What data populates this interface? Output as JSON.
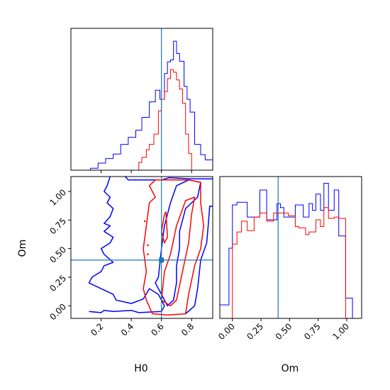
{
  "chart_data": {
    "type": "corner",
    "colors": {
      "blue": "#0000ff",
      "red": "#ff0000",
      "truth": "#1f77b4"
    },
    "truths": {
      "H0": 0.6,
      "Om": 0.4
    },
    "x_axis_label": "H0",
    "y_axis_label": "Om",
    "om_x_axis_label": "Om",
    "h0_ticks": [
      "0.2",
      "0.4",
      "0.6",
      "0.8"
    ],
    "om_ticks": [
      "0.00",
      "0.25",
      "0.50",
      "0.75",
      "1.00"
    ],
    "h0_range": [
      0.0,
      0.94
    ],
    "om_range": [
      -0.11,
      1.13
    ],
    "h0_hist_ymax": 11.0,
    "om_hist_ymax": 10.5,
    "h0_hist": {
      "blue": {
        "edges": [
          0.0,
          0.13,
          0.18,
          0.23,
          0.28,
          0.33,
          0.38,
          0.43,
          0.47,
          0.52,
          0.56,
          0.59,
          0.62,
          0.64,
          0.66,
          0.68,
          0.7,
          0.72,
          0.75,
          0.77,
          0.79,
          0.82,
          0.86,
          0.89,
          0.94
        ],
        "counts": [
          0.0,
          0.15,
          0.55,
          0.9,
          1.25,
          2.0,
          2.55,
          3.1,
          4.1,
          5.3,
          6.2,
          5.5,
          7.5,
          8.4,
          8.55,
          10.0,
          9.05,
          8.45,
          6.5,
          5.5,
          4.5,
          2.0,
          1.2,
          0.8
        ]
      },
      "red": {
        "edges": [
          0.45,
          0.47,
          0.5,
          0.52,
          0.55,
          0.58,
          0.6,
          0.62,
          0.64,
          0.66,
          0.68,
          0.7,
          0.72,
          0.74,
          0.76,
          0.78,
          0.8,
          0.82
        ],
        "counts": [
          0.6,
          1.0,
          1.6,
          2.0,
          2.8,
          4.6,
          5.5,
          6.1,
          7.1,
          7.8,
          7.6,
          7.0,
          6.3,
          5.2,
          2.8,
          1.3,
          0.0
        ]
      }
    },
    "om_hist": {
      "blue": {
        "edges": [
          -0.11,
          -0.03,
          0.0,
          0.04,
          0.08,
          0.13,
          0.24,
          0.3,
          0.39,
          0.42,
          0.45,
          0.49,
          0.55,
          0.62,
          0.67,
          0.7,
          0.73,
          0.77,
          0.8,
          0.84,
          0.89,
          0.93,
          0.99,
          1.05,
          1.13
        ],
        "counts": [
          1.0,
          5.2,
          8.4,
          8.6,
          8.6,
          7.5,
          9.5,
          7.3,
          8.5,
          8.2,
          7.5,
          7.5,
          8.4,
          7.5,
          8.5,
          8.0,
          9.2,
          8.0,
          10.0,
          8.0,
          9.5,
          6.1,
          1.5,
          0.0
        ]
      },
      "red": {
        "edges": [
          0.0,
          0.04,
          0.08,
          0.13,
          0.19,
          0.24,
          0.3,
          0.36,
          0.39,
          0.45,
          0.49,
          0.55,
          0.58,
          0.64,
          0.67,
          0.73,
          0.77,
          0.8,
          0.84,
          0.89,
          0.93,
          0.99
        ],
        "counts": [
          5.5,
          6.4,
          7.2,
          6.5,
          7.5,
          7.8,
          7.2,
          7.8,
          7.8,
          7.8,
          7.6,
          6.8,
          6.7,
          6.2,
          6.4,
          7.3,
          6.8,
          8.2,
          7.4,
          7.5,
          7.4
        ]
      }
    },
    "contours": {
      "blue": [
        [
          [
            0.12,
            -0.05
          ],
          [
            0.2,
            -0.06
          ],
          [
            0.22,
            -0.04
          ],
          [
            0.28,
            -0.05
          ],
          [
            0.4,
            -0.04
          ],
          [
            0.45,
            -0.06
          ],
          [
            0.6,
            -0.05
          ],
          [
            0.62,
            0.0
          ],
          [
            0.58,
            0.1
          ],
          [
            0.52,
            0.15
          ],
          [
            0.48,
            0.06
          ],
          [
            0.4,
            0.02
          ],
          [
            0.3,
            0.05
          ],
          [
            0.28,
            0.1
          ],
          [
            0.2,
            0.15
          ],
          [
            0.12,
            0.2
          ],
          [
            0.14,
            0.25
          ],
          [
            0.2,
            0.3
          ],
          [
            0.22,
            0.35
          ],
          [
            0.28,
            0.38
          ],
          [
            0.22,
            0.45
          ],
          [
            0.2,
            0.5
          ],
          [
            0.26,
            0.55
          ],
          [
            0.28,
            0.6
          ],
          [
            0.22,
            0.65
          ],
          [
            0.26,
            0.7
          ],
          [
            0.22,
            0.72
          ],
          [
            0.26,
            0.78
          ],
          [
            0.28,
            0.85
          ],
          [
            0.24,
            0.9
          ],
          [
            0.26,
            0.95
          ],
          [
            0.22,
            1.0
          ],
          [
            0.24,
            1.05
          ],
          [
            0.26,
            1.13
          ]
        ],
        [
          [
            0.36,
            1.13
          ],
          [
            0.38,
            1.1
          ],
          [
            0.48,
            1.1
          ],
          [
            0.6,
            1.1
          ],
          [
            0.65,
            1.12
          ],
          [
            0.8,
            1.11
          ],
          [
            0.94,
            1.11
          ]
        ],
        [
          [
            0.94,
            0.87
          ],
          [
            0.92,
            0.87
          ],
          [
            0.91,
            0.7
          ],
          [
            0.9,
            0.55
          ],
          [
            0.86,
            0.4
          ],
          [
            0.84,
            0.15
          ],
          [
            0.82,
            0.0
          ],
          [
            0.76,
            -0.07
          ]
        ],
        [
          [
            0.58,
            0.25
          ],
          [
            0.6,
            0.5
          ],
          [
            0.62,
            0.7
          ],
          [
            0.66,
            0.9
          ],
          [
            0.7,
            1.05
          ],
          [
            0.78,
            1.1
          ],
          [
            0.86,
            1.08
          ],
          [
            0.84,
            0.95
          ],
          [
            0.76,
            0.85
          ],
          [
            0.72,
            0.65
          ],
          [
            0.72,
            0.5
          ],
          [
            0.7,
            0.35
          ],
          [
            0.7,
            0.2
          ],
          [
            0.68,
            0.05
          ],
          [
            0.64,
            0.0
          ],
          [
            0.6,
            0.1
          ],
          [
            0.56,
            0.2
          ],
          [
            0.58,
            0.25
          ]
        ]
      ],
      "red": [
        [
          [
            0.5,
            0.05
          ],
          [
            0.54,
            -0.07
          ],
          [
            0.64,
            -0.08
          ],
          [
            0.76,
            -0.07
          ],
          [
            0.78,
            0.1
          ],
          [
            0.82,
            0.35
          ],
          [
            0.86,
            0.5
          ],
          [
            0.88,
            0.7
          ],
          [
            0.86,
            0.9
          ],
          [
            0.86,
            1.08
          ],
          [
            0.78,
            1.1
          ],
          [
            0.56,
            1.1
          ],
          [
            0.52,
            1.05
          ],
          [
            0.56,
            0.95
          ],
          [
            0.52,
            0.9
          ],
          [
            0.5,
            0.7
          ],
          [
            0.48,
            0.5
          ],
          [
            0.5,
            0.3
          ],
          [
            0.48,
            0.15
          ],
          [
            0.5,
            0.05
          ]
        ],
        [
          [
            0.6,
            0.05
          ],
          [
            0.66,
            0.0
          ],
          [
            0.7,
            0.05
          ],
          [
            0.74,
            0.3
          ],
          [
            0.78,
            0.55
          ],
          [
            0.8,
            0.8
          ],
          [
            0.82,
            0.95
          ],
          [
            0.76,
            0.92
          ],
          [
            0.7,
            0.7
          ],
          [
            0.66,
            0.45
          ],
          [
            0.62,
            0.3
          ],
          [
            0.6,
            0.05
          ]
        ],
        [
          [
            0.62,
            0.8
          ],
          [
            0.63,
            0.82
          ],
          [
            0.64,
            0.6
          ],
          [
            0.62,
            0.55
          ],
          [
            0.6,
            0.65
          ],
          [
            0.62,
            0.8
          ]
        ]
      ]
    },
    "markers": {
      "red_dots": [
        [
          0.51,
          0.53
        ],
        [
          0.51,
          0.45
        ],
        [
          0.49,
          0.74
        ]
      ],
      "truth_marker": [
        0.6,
        0.4
      ]
    }
  }
}
